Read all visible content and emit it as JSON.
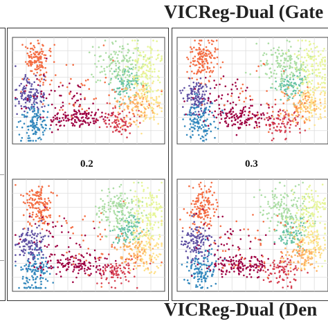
{
  "titles": {
    "top": "VICReg-Dual (Gate",
    "bottom": "VICReg-Dual (Den"
  },
  "panel_labels": [
    "0.2",
    "0.3"
  ],
  "chart_data": {
    "type": "scatter",
    "panels": [
      {
        "id": "top-left",
        "label": ""
      },
      {
        "id": "top-right",
        "label": ""
      },
      {
        "id": "bottom-left",
        "label": "0.2"
      },
      {
        "id": "bottom-right",
        "label": "0.3"
      }
    ],
    "grid": true,
    "axis_ticks": false,
    "clusters": [
      {
        "color": "#f46d43",
        "region": "upper-left plume"
      },
      {
        "color": "#5e4fa2",
        "region": "left"
      },
      {
        "color": "#3288bd",
        "region": "lower-left"
      },
      {
        "color": "#9e0142",
        "region": "bottom-center band"
      },
      {
        "color": "#d53e4f",
        "region": "bottom-right"
      },
      {
        "color": "#66c2a5",
        "region": "right-center"
      },
      {
        "color": "#abdda4",
        "region": "upper-right"
      },
      {
        "color": "#e6f598",
        "region": "upper-right"
      },
      {
        "color": "#fee08b",
        "region": "right"
      },
      {
        "color": "#fdae61",
        "region": "right"
      }
    ]
  }
}
